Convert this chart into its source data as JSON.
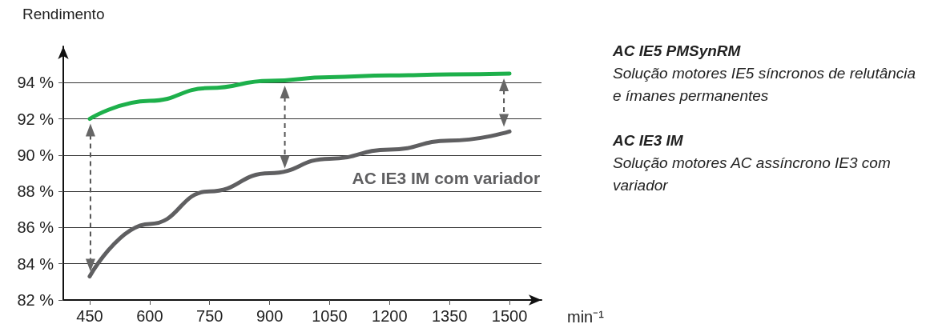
{
  "chart_data": {
    "type": "line",
    "ylabel": "Rendimento",
    "xlabel": "min⁻¹",
    "x": [
      450,
      600,
      750,
      900,
      1050,
      1200,
      1350,
      1500
    ],
    "series": [
      {
        "color": "#1db04b",
        "values": [
          92.0,
          93.0,
          93.7,
          94.1,
          94.3,
          94.4,
          94.45,
          94.5
        ]
      },
      {
        "name": "AC IE3 IM com variador",
        "color": "#5f5f61",
        "values": [
          83.3,
          86.2,
          88.0,
          89.0,
          89.8,
          90.3,
          90.8,
          91.3
        ]
      }
    ],
    "xlim": [
      384,
      1580
    ],
    "xticks": [
      450,
      600,
      750,
      900,
      1050,
      1200,
      1350,
      1500
    ],
    "ylim": [
      82,
      96
    ],
    "yticks": [
      {
        "value": 82,
        "label": "82 %"
      },
      {
        "value": 84,
        "label": "84 %"
      },
      {
        "value": 86,
        "label": "86 %"
      },
      {
        "value": 88,
        "label": "88 %"
      },
      {
        "value": 90,
        "label": "90 %"
      },
      {
        "value": 92,
        "label": "92 %"
      },
      {
        "value": 94,
        "label": "94 %"
      }
    ],
    "grid": "y",
    "marker": "none",
    "line_style": "solid",
    "legend": false,
    "annotations": [
      "AC IE5 PMSynRM",
      "Solução motores IE5 síncronos de relutância e ímanes permanentes",
      "AC IE3 IM",
      "Solução motores AC assíncrono IE3 com variador"
    ]
  }
}
